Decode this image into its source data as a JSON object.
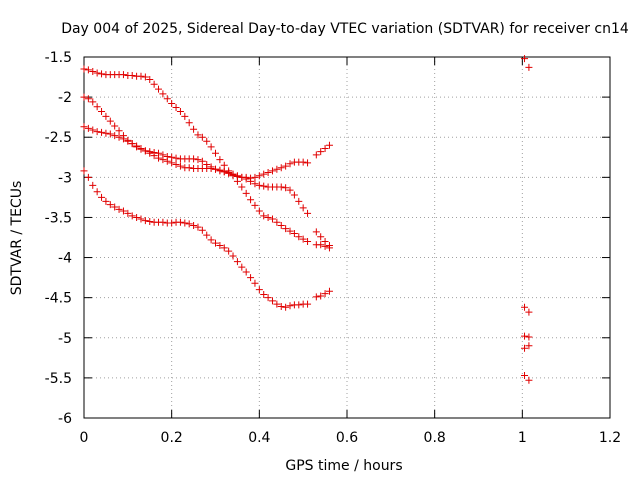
{
  "chart_data": {
    "type": "scatter",
    "title": "Day 004 of 2025, Sidereal Day-to-day VTEC variation (SDTVAR) for receiver cn14",
    "xlabel": "GPS time / hours",
    "ylabel": "SDTVAR / TECUs",
    "xlim": [
      0,
      1.2
    ],
    "ylim": [
      -6,
      -1.5
    ],
    "xticks": [
      0,
      0.2,
      0.4,
      0.6,
      0.8,
      1,
      1.2
    ],
    "xtick_labels": [
      "0",
      "0.2",
      "0.4",
      "0.6",
      "0.8",
      "1",
      "1.2"
    ],
    "yticks": [
      -6,
      -5.5,
      -5,
      -4.5,
      -4,
      -3.5,
      -3,
      -2.5,
      -2,
      -1.5
    ],
    "ytick_labels": [
      "-6",
      "-5.5",
      "-5",
      "-4.5",
      "-4",
      "-3.5",
      "-3",
      "-2.5",
      "-2",
      "-1.5"
    ],
    "grid": true,
    "marker": "+",
    "marker_color": "#e00000",
    "series": [
      {
        "name": "trace-a",
        "points": [
          [
            0.0,
            -1.65
          ],
          [
            0.01,
            -1.66
          ],
          [
            0.02,
            -1.68
          ],
          [
            0.03,
            -1.7
          ],
          [
            0.04,
            -1.71
          ],
          [
            0.05,
            -1.72
          ],
          [
            0.06,
            -1.72
          ],
          [
            0.07,
            -1.72
          ],
          [
            0.08,
            -1.72
          ],
          [
            0.09,
            -1.72
          ],
          [
            0.1,
            -1.73
          ],
          [
            0.11,
            -1.73
          ],
          [
            0.12,
            -1.74
          ],
          [
            0.13,
            -1.74
          ],
          [
            0.14,
            -1.75
          ],
          [
            0.15,
            -1.78
          ],
          [
            0.16,
            -1.84
          ],
          [
            0.17,
            -1.9
          ],
          [
            0.18,
            -1.96
          ],
          [
            0.19,
            -2.02
          ],
          [
            0.2,
            -2.08
          ],
          [
            0.21,
            -2.13
          ],
          [
            0.22,
            -2.18
          ],
          [
            0.23,
            -2.24
          ],
          [
            0.24,
            -2.32
          ],
          [
            0.25,
            -2.4
          ],
          [
            0.26,
            -2.47
          ],
          [
            0.27,
            -2.5
          ],
          [
            0.28,
            -2.55
          ],
          [
            0.29,
            -2.62
          ],
          [
            0.3,
            -2.7
          ],
          [
            0.31,
            -2.78
          ],
          [
            0.32,
            -2.85
          ],
          [
            0.33,
            -2.92
          ],
          [
            0.34,
            -2.98
          ],
          [
            0.35,
            -3.05
          ],
          [
            0.36,
            -3.12
          ],
          [
            0.37,
            -3.2
          ],
          [
            0.38,
            -3.28
          ],
          [
            0.39,
            -3.35
          ],
          [
            0.4,
            -3.42
          ],
          [
            0.41,
            -3.48
          ],
          [
            0.42,
            -3.5
          ],
          [
            0.43,
            -3.52
          ],
          [
            0.44,
            -3.56
          ],
          [
            0.45,
            -3.6
          ],
          [
            0.46,
            -3.64
          ],
          [
            0.47,
            -3.67
          ],
          [
            0.48,
            -3.7
          ],
          [
            0.49,
            -3.74
          ],
          [
            0.5,
            -3.77
          ],
          [
            0.51,
            -3.8
          ],
          [
            0.53,
            -3.68
          ],
          [
            0.54,
            -3.74
          ],
          [
            0.55,
            -3.8
          ],
          [
            0.56,
            -3.85
          ]
        ]
      },
      {
        "name": "trace-b",
        "points": [
          [
            0.0,
            -2.0
          ],
          [
            0.01,
            -2.02
          ],
          [
            0.02,
            -2.06
          ],
          [
            0.03,
            -2.12
          ],
          [
            0.04,
            -2.18
          ],
          [
            0.05,
            -2.24
          ],
          [
            0.06,
            -2.3
          ],
          [
            0.07,
            -2.36
          ],
          [
            0.08,
            -2.42
          ],
          [
            0.09,
            -2.48
          ],
          [
            0.1,
            -2.54
          ],
          [
            0.11,
            -2.58
          ],
          [
            0.12,
            -2.62
          ],
          [
            0.13,
            -2.65
          ],
          [
            0.14,
            -2.67
          ],
          [
            0.15,
            -2.68
          ],
          [
            0.16,
            -2.69
          ],
          [
            0.17,
            -2.7
          ],
          [
            0.18,
            -2.72
          ],
          [
            0.19,
            -2.74
          ],
          [
            0.2,
            -2.75
          ],
          [
            0.21,
            -2.76
          ],
          [
            0.22,
            -2.77
          ],
          [
            0.23,
            -2.77
          ],
          [
            0.24,
            -2.77
          ],
          [
            0.25,
            -2.77
          ],
          [
            0.26,
            -2.78
          ],
          [
            0.27,
            -2.8
          ],
          [
            0.28,
            -2.84
          ],
          [
            0.29,
            -2.87
          ],
          [
            0.3,
            -2.9
          ],
          [
            0.31,
            -2.92
          ],
          [
            0.32,
            -2.93
          ],
          [
            0.33,
            -2.94
          ],
          [
            0.34,
            -2.96
          ],
          [
            0.35,
            -2.98
          ],
          [
            0.36,
            -3.0
          ],
          [
            0.37,
            -3.02
          ],
          [
            0.38,
            -3.05
          ],
          [
            0.39,
            -3.08
          ],
          [
            0.4,
            -3.1
          ],
          [
            0.41,
            -3.11
          ],
          [
            0.42,
            -3.12
          ],
          [
            0.43,
            -3.12
          ],
          [
            0.44,
            -3.12
          ],
          [
            0.45,
            -3.12
          ],
          [
            0.46,
            -3.13
          ],
          [
            0.47,
            -3.16
          ],
          [
            0.48,
            -3.22
          ],
          [
            0.49,
            -3.3
          ],
          [
            0.5,
            -3.38
          ],
          [
            0.51,
            -3.45
          ],
          [
            0.53,
            -3.84
          ],
          [
            0.54,
            -3.84
          ],
          [
            0.55,
            -3.86
          ],
          [
            0.56,
            -3.88
          ]
        ]
      },
      {
        "name": "trace-c",
        "points": [
          [
            0.0,
            -2.37
          ],
          [
            0.01,
            -2.39
          ],
          [
            0.02,
            -2.41
          ],
          [
            0.03,
            -2.43
          ],
          [
            0.04,
            -2.44
          ],
          [
            0.05,
            -2.45
          ],
          [
            0.06,
            -2.46
          ],
          [
            0.07,
            -2.48
          ],
          [
            0.08,
            -2.5
          ],
          [
            0.09,
            -2.52
          ],
          [
            0.1,
            -2.55
          ],
          [
            0.11,
            -2.58
          ],
          [
            0.12,
            -2.61
          ],
          [
            0.13,
            -2.64
          ],
          [
            0.14,
            -2.67
          ],
          [
            0.15,
            -2.7
          ],
          [
            0.16,
            -2.73
          ],
          [
            0.17,
            -2.76
          ],
          [
            0.18,
            -2.78
          ],
          [
            0.19,
            -2.8
          ],
          [
            0.2,
            -2.82
          ],
          [
            0.21,
            -2.84
          ],
          [
            0.22,
            -2.86
          ],
          [
            0.23,
            -2.88
          ],
          [
            0.24,
            -2.88
          ],
          [
            0.25,
            -2.89
          ],
          [
            0.26,
            -2.89
          ],
          [
            0.27,
            -2.89
          ],
          [
            0.28,
            -2.89
          ],
          [
            0.29,
            -2.89
          ],
          [
            0.3,
            -2.9
          ],
          [
            0.31,
            -2.91
          ],
          [
            0.32,
            -2.93
          ],
          [
            0.33,
            -2.95
          ],
          [
            0.34,
            -2.97
          ],
          [
            0.35,
            -2.99
          ],
          [
            0.36,
            -3.0
          ],
          [
            0.37,
            -3.0
          ],
          [
            0.38,
            -3.01
          ],
          [
            0.39,
            -3.0
          ],
          [
            0.4,
            -2.98
          ],
          [
            0.41,
            -2.96
          ],
          [
            0.42,
            -2.94
          ],
          [
            0.43,
            -2.92
          ],
          [
            0.44,
            -2.9
          ],
          [
            0.45,
            -2.88
          ],
          [
            0.46,
            -2.86
          ],
          [
            0.47,
            -2.83
          ],
          [
            0.48,
            -2.81
          ],
          [
            0.49,
            -2.81
          ],
          [
            0.5,
            -2.81
          ],
          [
            0.51,
            -2.82
          ],
          [
            0.53,
            -2.72
          ],
          [
            0.54,
            -2.68
          ],
          [
            0.55,
            -2.64
          ],
          [
            0.56,
            -2.6
          ]
        ]
      },
      {
        "name": "trace-d",
        "points": [
          [
            0.0,
            -2.92
          ],
          [
            0.01,
            -3.0
          ],
          [
            0.02,
            -3.1
          ],
          [
            0.03,
            -3.18
          ],
          [
            0.04,
            -3.25
          ],
          [
            0.05,
            -3.3
          ],
          [
            0.06,
            -3.34
          ],
          [
            0.07,
            -3.37
          ],
          [
            0.08,
            -3.4
          ],
          [
            0.09,
            -3.42
          ],
          [
            0.1,
            -3.45
          ],
          [
            0.11,
            -3.48
          ],
          [
            0.12,
            -3.5
          ],
          [
            0.13,
            -3.52
          ],
          [
            0.14,
            -3.54
          ],
          [
            0.15,
            -3.55
          ],
          [
            0.16,
            -3.56
          ],
          [
            0.17,
            -3.56
          ],
          [
            0.18,
            -3.56
          ],
          [
            0.19,
            -3.57
          ],
          [
            0.2,
            -3.57
          ],
          [
            0.21,
            -3.56
          ],
          [
            0.22,
            -3.56
          ],
          [
            0.23,
            -3.57
          ],
          [
            0.24,
            -3.58
          ],
          [
            0.25,
            -3.6
          ],
          [
            0.26,
            -3.62
          ],
          [
            0.27,
            -3.66
          ],
          [
            0.28,
            -3.72
          ],
          [
            0.29,
            -3.78
          ],
          [
            0.3,
            -3.82
          ],
          [
            0.31,
            -3.85
          ],
          [
            0.32,
            -3.88
          ],
          [
            0.33,
            -3.92
          ],
          [
            0.34,
            -3.98
          ],
          [
            0.35,
            -4.05
          ],
          [
            0.36,
            -4.12
          ],
          [
            0.37,
            -4.18
          ],
          [
            0.38,
            -4.25
          ],
          [
            0.39,
            -4.32
          ],
          [
            0.4,
            -4.4
          ],
          [
            0.41,
            -4.46
          ],
          [
            0.42,
            -4.5
          ],
          [
            0.43,
            -4.54
          ],
          [
            0.44,
            -4.58
          ],
          [
            0.45,
            -4.61
          ],
          [
            0.46,
            -4.62
          ],
          [
            0.47,
            -4.6
          ],
          [
            0.48,
            -4.59
          ],
          [
            0.49,
            -4.59
          ],
          [
            0.5,
            -4.58
          ],
          [
            0.51,
            -4.58
          ],
          [
            0.53,
            -4.49
          ],
          [
            0.54,
            -4.48
          ],
          [
            0.55,
            -4.45
          ],
          [
            0.56,
            -4.42
          ]
        ]
      },
      {
        "name": "late-points",
        "points": [
          [
            1.005,
            -1.52
          ],
          [
            1.015,
            -1.63
          ],
          [
            1.005,
            -4.62
          ],
          [
            1.015,
            -4.68
          ],
          [
            1.005,
            -4.98
          ],
          [
            1.015,
            -4.99
          ],
          [
            1.005,
            -5.13
          ],
          [
            1.015,
            -5.1
          ],
          [
            1.005,
            -5.47
          ],
          [
            1.015,
            -5.53
          ]
        ]
      }
    ]
  }
}
